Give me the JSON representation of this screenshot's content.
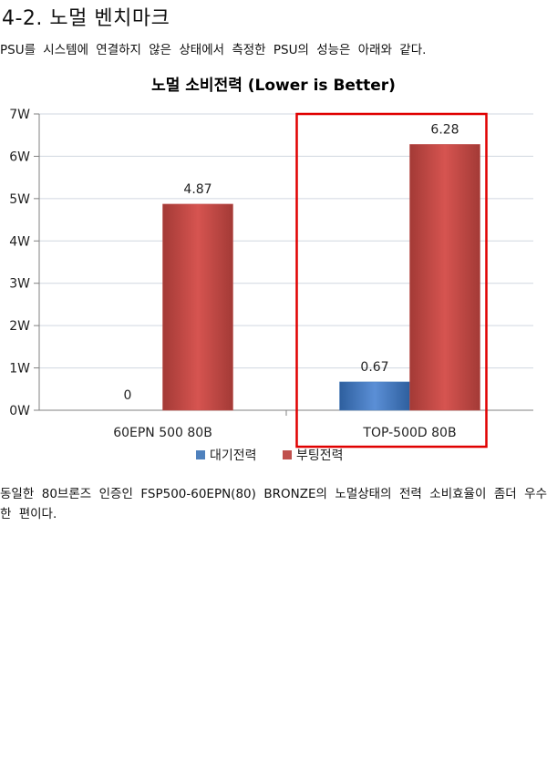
{
  "section_heading": "4-2. 노멀 벤치마크",
  "intro_text": "PSU를 시스템에 연결하지 않은 상태에서 측정한 PSU의 성능은 아래와 같다.",
  "chart_data": {
    "type": "bar",
    "title": "노멀 소비전력 (Lower is Better)",
    "categories": [
      "60EPN 500 80B",
      "TOP-500D 80B"
    ],
    "series": [
      {
        "name": "대기전력",
        "values": [
          0,
          0.67
        ],
        "color": "#4f81bd"
      },
      {
        "name": "부팅전력",
        "values": [
          4.87,
          6.28
        ],
        "color": "#c0504d"
      }
    ],
    "data_labels": [
      [
        "0",
        "4.87"
      ],
      [
        "0.67",
        "6.28"
      ]
    ],
    "y_ticks": [
      "0W",
      "1W",
      "2W",
      "3W",
      "4W",
      "5W",
      "6W",
      "7W"
    ],
    "ylim": [
      0,
      7
    ],
    "grid": true,
    "legend_position": "bottom",
    "highlight": {
      "category": "TOP-500D 80B",
      "color": "#e00000"
    }
  },
  "conclusion_text": "동일한 80브론즈 인증인 FSP500-60EPN(80) BRONZE의 노멀상태의 전력 소비효율이 좀더 우수한 편이다."
}
